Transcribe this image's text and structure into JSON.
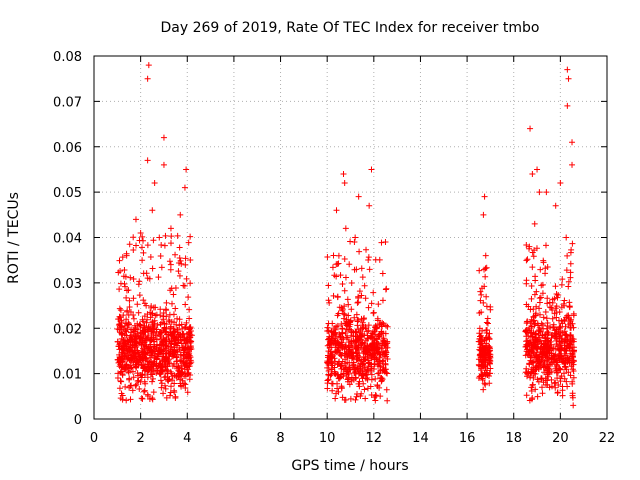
{
  "chart_data": {
    "type": "scatter",
    "title": "Day 269 of 2019, Rate Of TEC Index for receiver tmbo",
    "xlabel": "GPS time / hours",
    "ylabel": "ROTI / TECUs",
    "xlim": [
      0,
      22
    ],
    "ylim": [
      0,
      0.08
    ],
    "xticks": [
      0,
      2,
      4,
      6,
      8,
      10,
      12,
      14,
      16,
      18,
      20,
      22
    ],
    "yticks": [
      0,
      0.01,
      0.02,
      0.03,
      0.04,
      0.05,
      0.06,
      0.07,
      0.08
    ],
    "ytick_labels": [
      "0",
      "0.01",
      "0.02",
      "0.03",
      "0.04",
      "0.05",
      "0.06",
      "0.07",
      "0.08"
    ],
    "grid": true,
    "marker": "+",
    "series": [
      {
        "name": "ROTI",
        "color": "#ff0000",
        "clusters": [
          {
            "x_range": [
              1.0,
              4.2
            ],
            "bulk_range": [
              0.004,
              0.03
            ],
            "count": 900
          },
          {
            "x_range": [
              10.0,
              12.6
            ],
            "bulk_range": [
              0.004,
              0.03
            ],
            "count": 650
          },
          {
            "x_range": [
              16.5,
              17.0
            ],
            "bulk_range": [
              0.006,
              0.025
            ],
            "count": 160
          },
          {
            "x_range": [
              18.5,
              20.6
            ],
            "bulk_range": [
              0.004,
              0.03
            ],
            "count": 600
          }
        ],
        "highlighted_points": [
          {
            "x": 2.35,
            "y": 0.078
          },
          {
            "x": 2.3,
            "y": 0.075
          },
          {
            "x": 3.0,
            "y": 0.062
          },
          {
            "x": 2.3,
            "y": 0.057
          },
          {
            "x": 3.0,
            "y": 0.056
          },
          {
            "x": 3.95,
            "y": 0.055
          },
          {
            "x": 2.6,
            "y": 0.052
          },
          {
            "x": 3.9,
            "y": 0.051
          },
          {
            "x": 2.5,
            "y": 0.046
          },
          {
            "x": 3.7,
            "y": 0.045
          },
          {
            "x": 1.8,
            "y": 0.044
          },
          {
            "x": 3.3,
            "y": 0.042
          },
          {
            "x": 2.0,
            "y": 0.041
          },
          {
            "x": 1.4,
            "y": 0.036
          },
          {
            "x": 2.8,
            "y": 0.04
          },
          {
            "x": 10.7,
            "y": 0.054
          },
          {
            "x": 10.75,
            "y": 0.052
          },
          {
            "x": 11.35,
            "y": 0.049
          },
          {
            "x": 11.9,
            "y": 0.055
          },
          {
            "x": 11.8,
            "y": 0.047
          },
          {
            "x": 10.4,
            "y": 0.046
          },
          {
            "x": 10.8,
            "y": 0.042
          },
          {
            "x": 12.5,
            "y": 0.039
          },
          {
            "x": 11.2,
            "y": 0.04
          },
          {
            "x": 16.75,
            "y": 0.049
          },
          {
            "x": 16.7,
            "y": 0.045
          },
          {
            "x": 16.8,
            "y": 0.036
          },
          {
            "x": 18.7,
            "y": 0.064
          },
          {
            "x": 19.0,
            "y": 0.055
          },
          {
            "x": 18.8,
            "y": 0.054
          },
          {
            "x": 19.1,
            "y": 0.05
          },
          {
            "x": 19.4,
            "y": 0.05
          },
          {
            "x": 20.3,
            "y": 0.077
          },
          {
            "x": 20.35,
            "y": 0.075
          },
          {
            "x": 20.3,
            "y": 0.069
          },
          {
            "x": 20.5,
            "y": 0.061
          },
          {
            "x": 20.5,
            "y": 0.056
          },
          {
            "x": 20.0,
            "y": 0.052
          },
          {
            "x": 19.8,
            "y": 0.047
          },
          {
            "x": 18.9,
            "y": 0.043
          },
          {
            "x": 20.25,
            "y": 0.04
          },
          {
            "x": 20.55,
            "y": 0.003
          }
        ]
      }
    ]
  }
}
